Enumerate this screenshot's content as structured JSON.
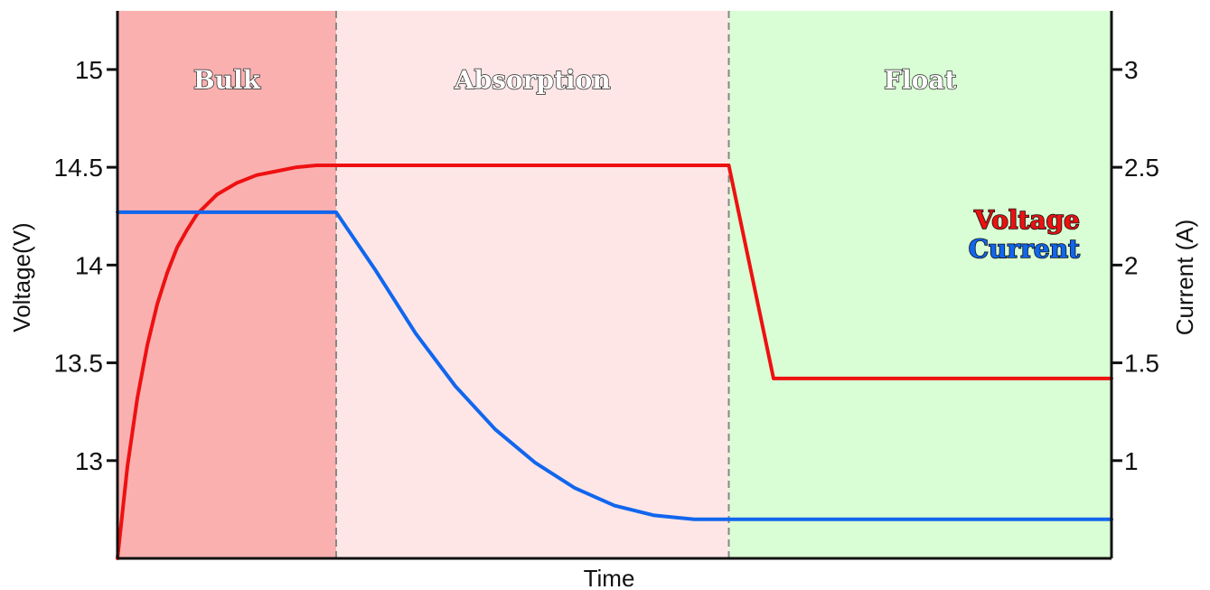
{
  "chart_data": {
    "type": "line",
    "xlabel": "Time",
    "ylabel_left": "Voltage(V)",
    "ylabel_right": "Current (A)",
    "xlim": [
      0,
      100
    ],
    "ylim_left": [
      12.5,
      15.3
    ],
    "ylim_right": [
      0.5,
      3.3
    ],
    "yticks_left": [
      "15",
      "14.5",
      "14",
      "13.5",
      "13"
    ],
    "yticks_right": [
      "3",
      "2.5",
      "2",
      "1.5",
      "1"
    ],
    "phases": [
      {
        "label": "Bulk",
        "start": 0,
        "end": 22,
        "color": "#fbb0b0"
      },
      {
        "label": "Absorption",
        "start": 22,
        "end": 61.5,
        "color": "#fee6e6"
      },
      {
        "label": "Float",
        "start": 61.5,
        "end": 100,
        "color": "#d9fdd4"
      }
    ],
    "series": [
      {
        "name": "Voltage",
        "axis": "left",
        "color": "#ee1111",
        "x": [
          0,
          1,
          2,
          3,
          4,
          5,
          6,
          7,
          8,
          10,
          12,
          14,
          16,
          18,
          20,
          22,
          61.5,
          66,
          100
        ],
        "y": [
          12.5,
          12.97,
          13.32,
          13.59,
          13.8,
          13.96,
          14.09,
          14.18,
          14.26,
          14.36,
          14.42,
          14.46,
          14.48,
          14.5,
          14.51,
          14.51,
          14.51,
          13.42,
          13.42
        ]
      },
      {
        "name": "Current",
        "axis": "right",
        "color": "#1166ee",
        "x": [
          0,
          22,
          26,
          30,
          34,
          38,
          42,
          46,
          50,
          54,
          58,
          61.5,
          100
        ],
        "y": [
          2.27,
          2.27,
          1.97,
          1.65,
          1.38,
          1.16,
          0.99,
          0.86,
          0.77,
          0.72,
          0.7,
          0.7,
          0.7
        ]
      }
    ]
  }
}
